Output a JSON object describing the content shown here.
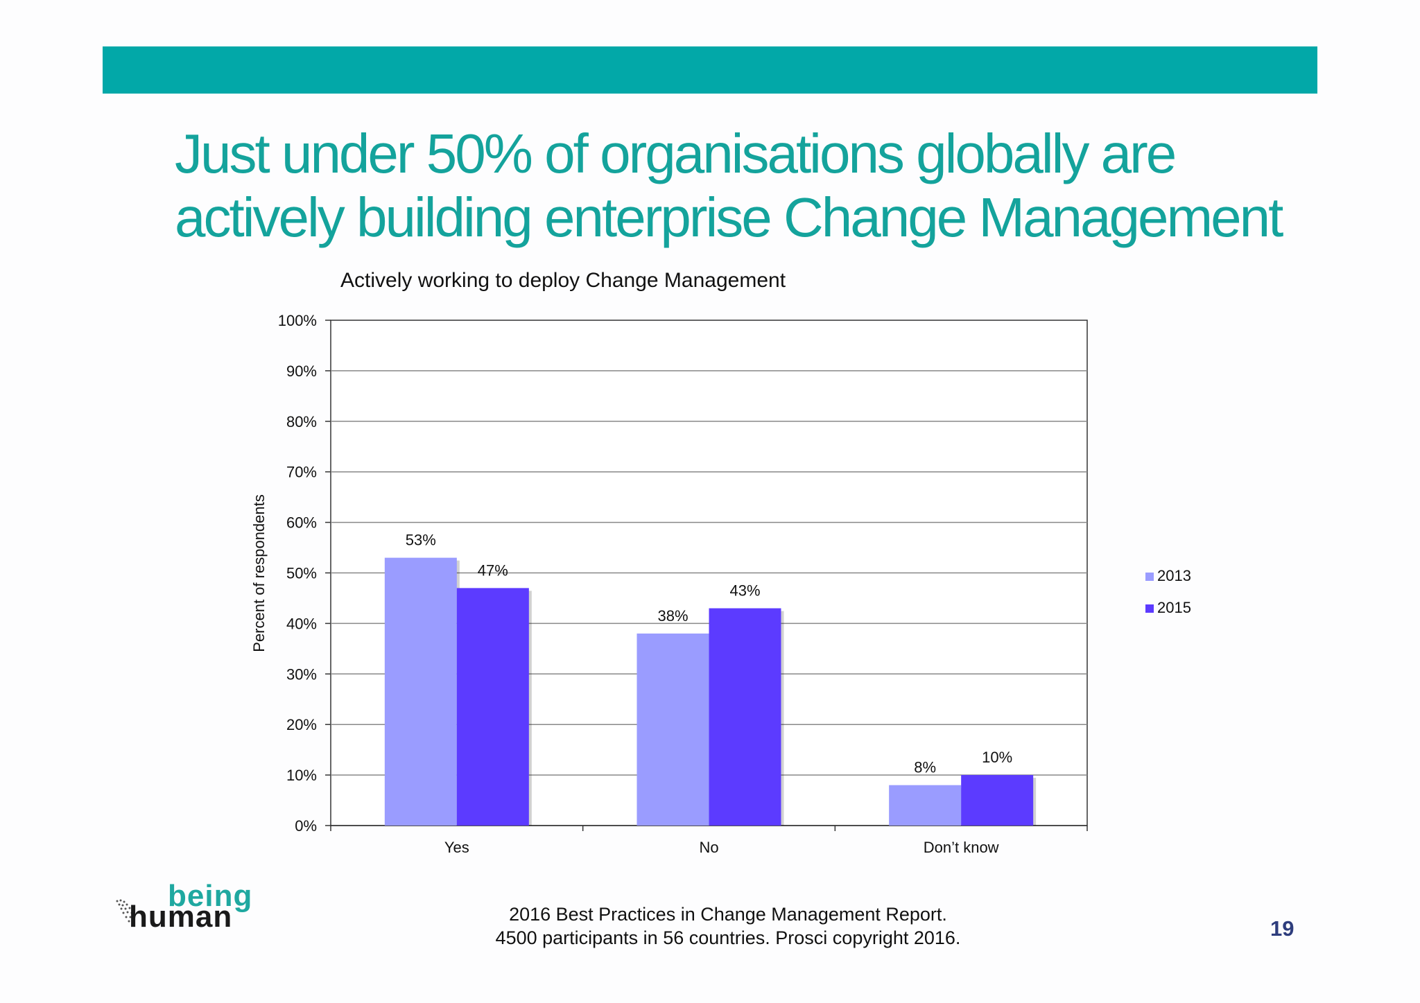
{
  "slide": {
    "title_lines": [
      "Just under 50% of organisations globally are",
      "actively building enterprise Change Management"
    ],
    "source_lines": [
      "2016 Best Practices in Change Management Report.",
      "4500 participants in 56 countries.  Prosci copyright 2016."
    ],
    "page_number": "19",
    "logo": {
      "top_word": "being",
      "bottom_word": "human"
    },
    "colors": {
      "band": "#02a8a8",
      "title": "#14a39c",
      "page_number": "#2e3d7d"
    }
  },
  "chart_data": {
    "type": "bar",
    "title": "Actively working to deploy Change Management",
    "xlabel": "",
    "ylabel": "Percent of respondents",
    "categories": [
      "Yes",
      "No",
      "Don’t know"
    ],
    "series": [
      {
        "name": "2013",
        "values": [
          53,
          38,
          8
        ],
        "labels": [
          "53%",
          "38%",
          "8%"
        ],
        "color": "#9a9cff"
      },
      {
        "name": "2015",
        "values": [
          47,
          43,
          10
        ],
        "labels": [
          "47%",
          "43%",
          "10%"
        ],
        "color": "#5c3bff"
      }
    ],
    "ylim": [
      0,
      100
    ],
    "yticks": [
      0,
      10,
      20,
      30,
      40,
      50,
      60,
      70,
      80,
      90,
      100
    ],
    "ytick_labels": [
      "0%",
      "10%",
      "20%",
      "30%",
      "40%",
      "50%",
      "60%",
      "70%",
      "80%",
      "90%",
      "100%"
    ],
    "grid": true,
    "legend": "right"
  }
}
